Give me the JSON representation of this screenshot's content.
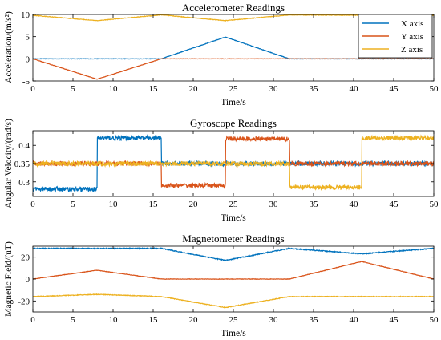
{
  "colors": {
    "x": "#0072BD",
    "y": "#D95319",
    "z": "#EDB120"
  },
  "legend": {
    "entries": [
      "X axis",
      "Y axis",
      "Z axis"
    ],
    "placement": "top-right (accelerometer panel)"
  },
  "chart_data": [
    {
      "type": "line",
      "title": "Accelerometer Readings",
      "xlabel": "Time/s",
      "ylabel": "Acceleration/(m/s²)",
      "xlim": [
        0,
        50
      ],
      "ylim": [
        -5,
        10
      ],
      "xticks": [
        0,
        5,
        10,
        15,
        20,
        25,
        30,
        35,
        40,
        45,
        50
      ],
      "yticks": [
        -5,
        0,
        5,
        10
      ],
      "grid": false,
      "series": [
        {
          "name": "X axis",
          "color": "x",
          "noise": 0.05,
          "points": [
            [
              0,
              0
            ],
            [
              16,
              0
            ],
            [
              24,
              4.9
            ],
            [
              32,
              0
            ],
            [
              50,
              0
            ]
          ]
        },
        {
          "name": "Y axis",
          "color": "y",
          "noise": 0.04,
          "points": [
            [
              0,
              0
            ],
            [
              8,
              -4.6
            ],
            [
              16,
              0
            ],
            [
              50,
              0
            ]
          ]
        },
        {
          "name": "Z axis",
          "color": "z",
          "noise": 0.06,
          "points": [
            [
              0,
              9.8
            ],
            [
              8,
              8.6
            ],
            [
              16,
              9.9
            ],
            [
              24,
              8.6
            ],
            [
              32,
              9.9
            ],
            [
              41,
              9.8
            ],
            [
              50,
              9.8
            ]
          ]
        }
      ]
    },
    {
      "type": "line",
      "title": "Gyroscope Readings",
      "xlabel": "Time/s",
      "ylabel": "Angular Velocity/(rad/s)",
      "xlim": [
        0,
        50
      ],
      "ylim": [
        0.26,
        0.44
      ],
      "xticks": [
        0,
        5,
        10,
        15,
        20,
        25,
        30,
        35,
        40,
        45,
        50
      ],
      "yticks": [
        0.3,
        0.35,
        0.4
      ],
      "grid": false,
      "series": [
        {
          "name": "X axis",
          "color": "x",
          "noise": 0.006,
          "points": [
            [
              0,
              0.28
            ],
            [
              8,
              0.28
            ],
            [
              8,
              0.42
            ],
            [
              16,
              0.42
            ],
            [
              16,
              0.35
            ],
            [
              50,
              0.35
            ]
          ]
        },
        {
          "name": "Y axis",
          "color": "y",
          "noise": 0.006,
          "points": [
            [
              0,
              0.35
            ],
            [
              16,
              0.35
            ],
            [
              16,
              0.29
            ],
            [
              24,
              0.29
            ],
            [
              24,
              0.418
            ],
            [
              32,
              0.418
            ],
            [
              32,
              0.35
            ],
            [
              50,
              0.35
            ]
          ]
        },
        {
          "name": "Z axis",
          "color": "z",
          "noise": 0.006,
          "points": [
            [
              0,
              0.35
            ],
            [
              32,
              0.35
            ],
            [
              32,
              0.285
            ],
            [
              41,
              0.285
            ],
            [
              41,
              0.42
            ],
            [
              50,
              0.42
            ]
          ]
        }
      ]
    },
    {
      "type": "line",
      "title": "Magnetometer Readings",
      "xlabel": "Time/s",
      "ylabel": "Magnetic Field/(uT)",
      "xlim": [
        0,
        50
      ],
      "ylim": [
        -30,
        30
      ],
      "xticks": [
        0,
        5,
        10,
        15,
        20,
        25,
        30,
        35,
        40,
        45,
        50
      ],
      "yticks": [
        -20,
        0,
        20
      ],
      "grid": false,
      "series": [
        {
          "name": "X axis",
          "color": "x",
          "noise": 0.4,
          "points": [
            [
              0,
              28
            ],
            [
              16,
              28
            ],
            [
              24,
              17
            ],
            [
              32,
              28
            ],
            [
              41,
              23
            ],
            [
              50,
              28
            ]
          ]
        },
        {
          "name": "Y axis",
          "color": "y",
          "noise": 0.2,
          "points": [
            [
              0,
              0
            ],
            [
              8,
              8
            ],
            [
              16,
              0
            ],
            [
              32,
              0
            ],
            [
              41,
              16
            ],
            [
              50,
              0
            ]
          ]
        },
        {
          "name": "Z axis",
          "color": "z",
          "noise": 0.3,
          "points": [
            [
              0,
              -16
            ],
            [
              8,
              -14
            ],
            [
              16,
              -16
            ],
            [
              24,
              -26
            ],
            [
              32,
              -16
            ],
            [
              50,
              -16
            ]
          ]
        }
      ]
    }
  ]
}
